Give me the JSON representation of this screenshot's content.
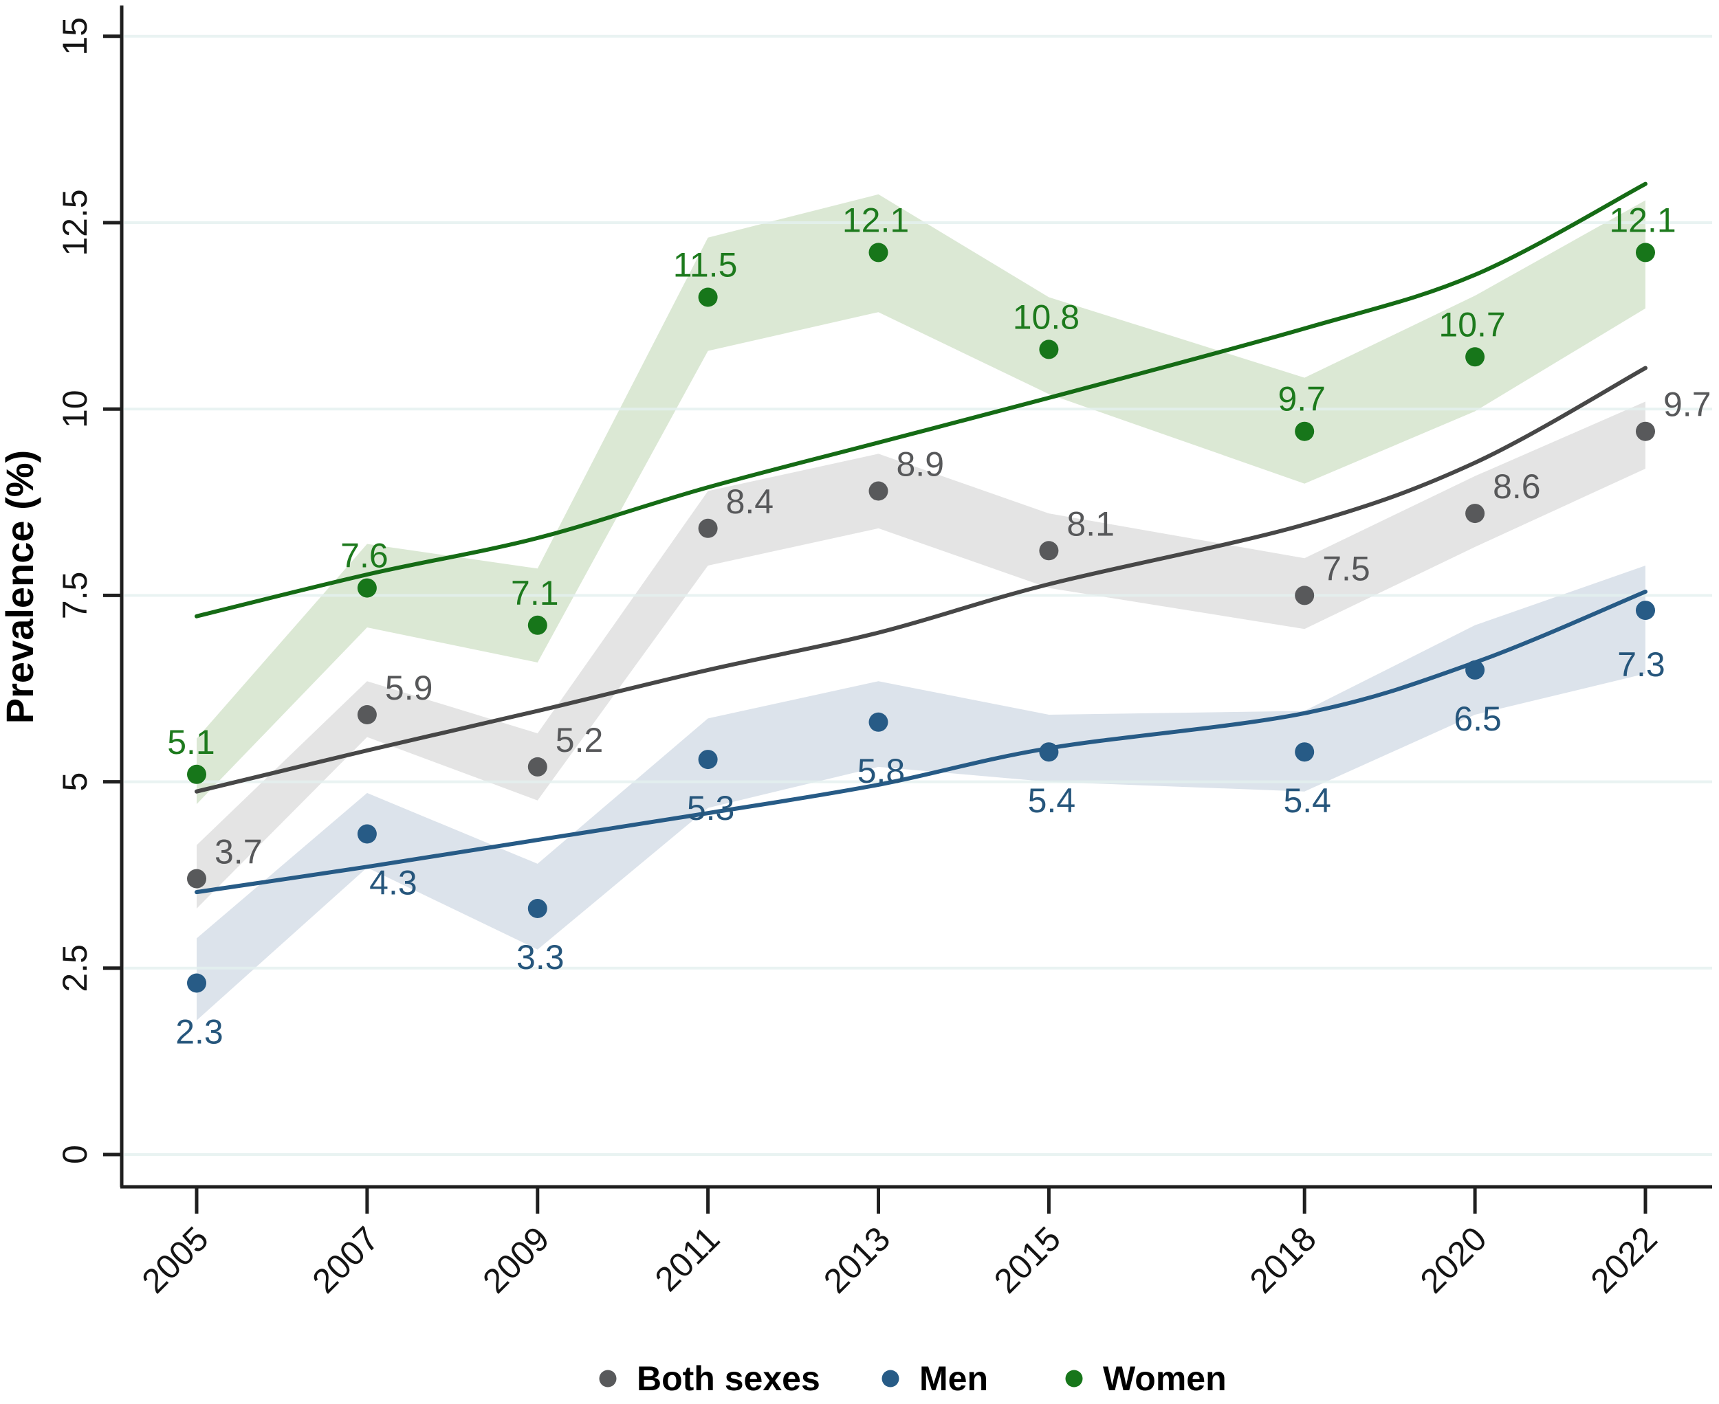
{
  "chart_data": {
    "type": "line",
    "title": "",
    "xlabel": "",
    "ylabel": "Prevalence (%)",
    "ylim": [
      0,
      15
    ],
    "grid": true,
    "legend_position": "bottom-center",
    "x": [
      2005,
      2007,
      2009,
      2011,
      2013,
      2015,
      2018,
      2020,
      2022
    ],
    "x_tick_labels": [
      "2005",
      "2007",
      "2009",
      "2011",
      "2013",
      "2015",
      "2018",
      "2020",
      "2022"
    ],
    "y_ticks": [
      0,
      2.5,
      5,
      7.5,
      10,
      12.5,
      15
    ],
    "y_tick_labels": [
      "0",
      "2.5",
      "5",
      "7.5",
      "10",
      "12.5",
      "15"
    ],
    "series": [
      {
        "name": "Both sexes",
        "point_color": "#58595b",
        "line_color": "#474747",
        "band_color": "#e4e4e4",
        "label_color": "#57585a",
        "values": [
          3.7,
          5.9,
          5.2,
          8.4,
          8.9,
          8.1,
          7.5,
          8.6,
          9.7
        ],
        "labels": [
          "3.7",
          "5.9",
          "5.2",
          "8.4",
          "8.9",
          "8.1",
          "7.5",
          "8.6",
          "9.7"
        ],
        "ci_low": [
          3.3,
          5.6,
          4.75,
          7.9,
          8.4,
          7.6,
          7.05,
          8.15,
          9.2
        ],
        "ci_high": [
          4.15,
          6.35,
          5.65,
          8.9,
          9.4,
          8.6,
          8.0,
          9.1,
          10.1
        ],
        "trend": [
          4.87,
          5.42,
          5.95,
          6.5,
          7.0,
          7.65,
          8.45,
          9.28,
          10.55
        ]
      },
      {
        "name": "Men",
        "point_color": "#275b86",
        "line_color": "#275b86",
        "band_color": "#dce3eb",
        "label_color": "#26567c",
        "values": [
          2.3,
          4.3,
          3.3,
          5.3,
          5.8,
          5.4,
          5.4,
          6.5,
          7.3
        ],
        "labels": [
          "2.3",
          "4.3",
          "3.3",
          "5.3",
          "5.8",
          "5.4",
          "5.4",
          "6.5",
          "7.3"
        ],
        "ci_low": [
          1.8,
          3.85,
          2.75,
          4.65,
          5.2,
          5.0,
          4.87,
          5.9,
          6.45
        ],
        "ci_high": [
          2.9,
          4.85,
          3.9,
          5.85,
          6.35,
          5.9,
          5.95,
          7.1,
          7.9
        ],
        "trend": [
          3.52,
          3.86,
          4.22,
          4.58,
          4.96,
          5.45,
          5.92,
          6.6,
          7.55
        ]
      },
      {
        "name": "Women",
        "point_color": "#17761a",
        "line_color": "#156b15",
        "band_color": "#dbe8d4",
        "label_color": "#1d7a1d",
        "values": [
          5.1,
          7.6,
          7.1,
          11.5,
          12.1,
          10.8,
          9.7,
          10.7,
          12.1
        ],
        "labels": [
          "5.1",
          "7.6",
          "7.1",
          "11.5",
          "12.1",
          "10.8",
          "9.7",
          "10.7",
          "12.1"
        ],
        "ci_low": [
          4.7,
          7.07,
          6.6,
          10.78,
          11.3,
          10.2,
          9.0,
          9.97,
          11.35
        ],
        "ci_high": [
          5.58,
          8.19,
          7.86,
          12.3,
          12.88,
          11.5,
          10.42,
          11.52,
          12.8
        ],
        "trend": [
          7.22,
          7.78,
          8.27,
          8.95,
          9.55,
          10.15,
          11.08,
          11.8,
          13.02
        ]
      }
    ],
    "legend": [
      "Both sexes",
      "Men",
      "Women"
    ],
    "colors": {
      "grid": "#e3f0ef",
      "axis": "#1f1f1f",
      "tick_label": "#141414",
      "background": "#ffffff"
    }
  }
}
